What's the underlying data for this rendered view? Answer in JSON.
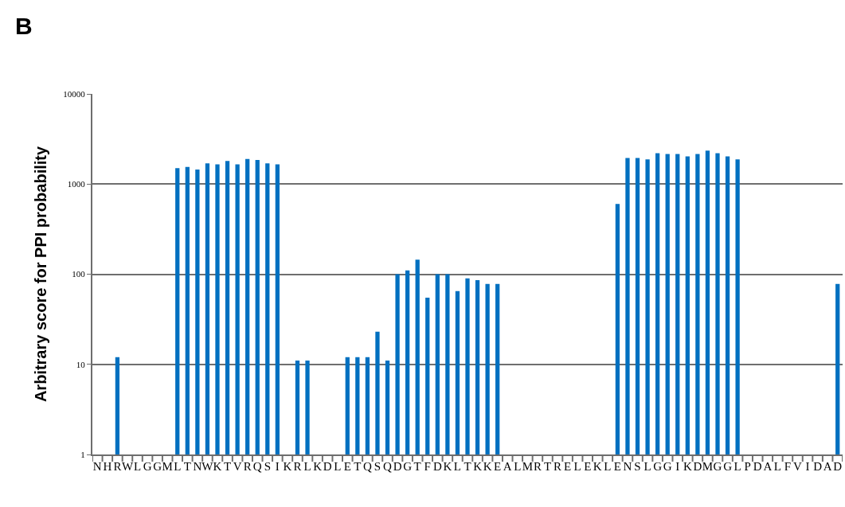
{
  "chart_data": {
    "type": "bar",
    "title": "B",
    "ylabel": "Arbitrary score for PPI probability",
    "categories": [
      "N",
      "H",
      "R",
      "W",
      "L",
      "G",
      "G",
      "M",
      "L",
      "T",
      "N",
      "W",
      "K",
      "T",
      "V",
      "R",
      "Q",
      "S",
      "I",
      "K",
      "R",
      "L",
      "K",
      "D",
      "L",
      "E",
      "T",
      "Q",
      "S",
      "Q",
      "D",
      "G",
      "T",
      "F",
      "D",
      "K",
      "L",
      "T",
      "K",
      "K",
      "E",
      "A",
      "L",
      "M",
      "R",
      "T",
      "R",
      "E",
      "L",
      "E",
      "K",
      "L",
      "E",
      "N",
      "S",
      "L",
      "G",
      "G",
      "I",
      "K",
      "D",
      "M",
      "G",
      "G",
      "L",
      "P",
      "D",
      "A",
      "L",
      "F",
      "V",
      "I",
      "D",
      "A",
      "D"
    ],
    "values": [
      null,
      null,
      12,
      null,
      null,
      null,
      null,
      null,
      1500,
      1550,
      1450,
      1700,
      1650,
      1800,
      1650,
      1900,
      1850,
      1700,
      1650,
      null,
      11,
      11,
      null,
      null,
      null,
      12,
      12,
      12,
      23,
      11,
      100,
      110,
      145,
      55,
      100,
      100,
      65,
      90,
      86,
      78,
      78,
      null,
      null,
      null,
      null,
      null,
      null,
      null,
      null,
      null,
      null,
      null,
      600,
      1950,
      1950,
      1880,
      2200,
      2150,
      2150,
      2030,
      2150,
      2350,
      2200,
      2030,
      1880,
      null,
      null,
      null,
      null,
      null,
      null,
      null,
      null,
      null,
      78
    ],
    "color": "#0070c0",
    "log": true,
    "ylim": [
      1,
      10000
    ],
    "yticks": [
      1,
      10,
      100,
      1000,
      10000
    ],
    "grid": "y",
    "legend": false
  }
}
